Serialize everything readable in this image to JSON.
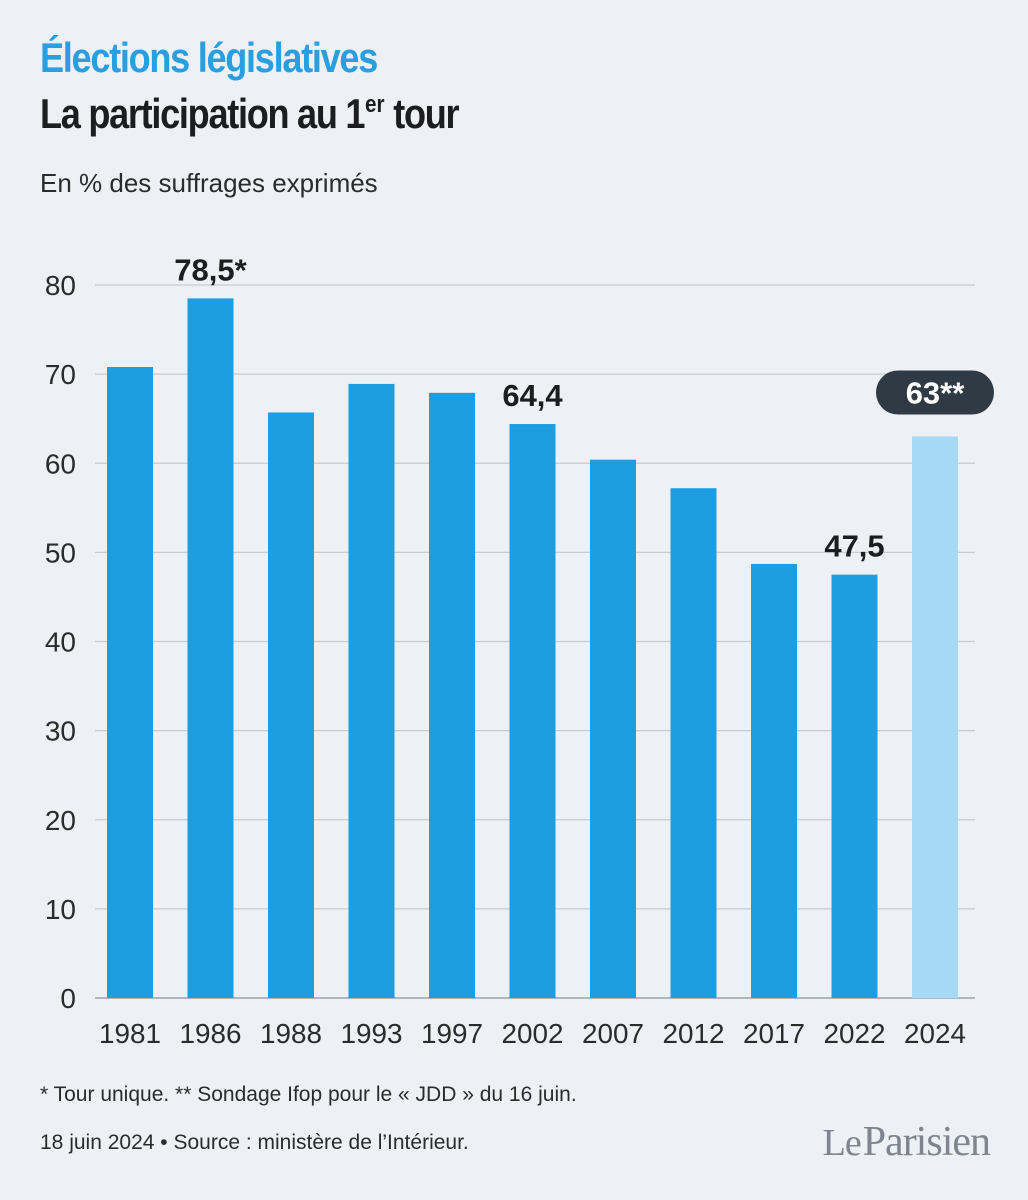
{
  "header": {
    "kicker": "Élections législatives",
    "title_main": "La participation au 1",
    "title_sup": "er",
    "title_end": " tour",
    "subtitle": "En % des suffrages exprimés"
  },
  "colors": {
    "bar": "#1d9ee3",
    "bar_highlight": "#a6d9f3",
    "badge": "#2f3a44",
    "grid": "#c5ccd3",
    "text": "#1d1d1f"
  },
  "chart_data": {
    "type": "bar",
    "title": "La participation au 1er tour",
    "ylabel": "En % des suffrages exprimés",
    "xlabel": "",
    "ylim": [
      0,
      80
    ],
    "yticks": [
      0,
      10,
      20,
      30,
      40,
      50,
      60,
      70,
      80
    ],
    "grid": true,
    "categories": [
      "1981",
      "1986",
      "1988",
      "1993",
      "1997",
      "2002",
      "2007",
      "2012",
      "2017",
      "2022",
      "2024"
    ],
    "values": [
      70.8,
      78.5,
      65.7,
      68.9,
      67.9,
      64.4,
      60.4,
      57.2,
      48.7,
      47.5,
      63
    ],
    "annotations": [
      {
        "index": 1,
        "label": "78,5*",
        "style": "plain"
      },
      {
        "index": 5,
        "label": "64,4",
        "style": "plain"
      },
      {
        "index": 9,
        "label": "47,5",
        "style": "plain"
      },
      {
        "index": 10,
        "label": "63**",
        "style": "badge"
      }
    ],
    "highlight_index": 10
  },
  "footnote": "* Tour unique.  ** Sondage Ifop pour le « JDD » du 16 juin.",
  "footer": "18 juin 2024 • Source : ministère de l’Intérieur.",
  "logo": {
    "part1": "Le",
    "part2": "Parisien"
  }
}
